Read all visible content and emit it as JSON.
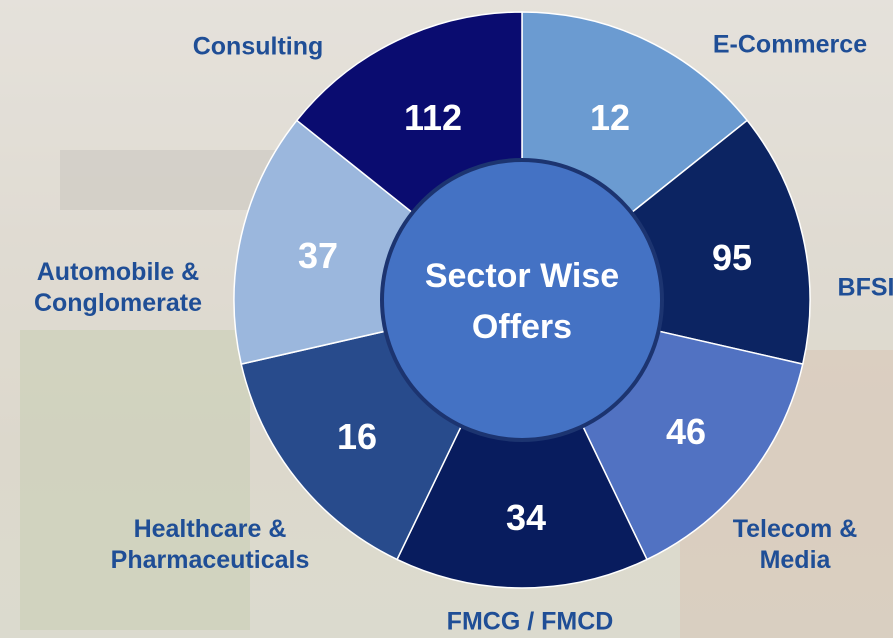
{
  "title": "Sector Wise Offers",
  "segments": [
    {
      "label": "E-Commerce",
      "value": 12,
      "color": "#6b9bd1"
    },
    {
      "label": "BFSI",
      "value": 95,
      "color": "#0c2462"
    },
    {
      "label": "Telecom & Media",
      "value": 46,
      "color": "#5172c2"
    },
    {
      "label": "FMCG / FMCD",
      "value": 34,
      "color": "#081c5e"
    },
    {
      "label": "Healthcare & Pharmaceuticals",
      "value": 16,
      "color": "#284b8c"
    },
    {
      "label": "Automobile & Conglomerate",
      "value": 37,
      "color": "#9bb7dd"
    },
    {
      "label": "Consulting",
      "value": 112,
      "color": "#0a0c70"
    }
  ]
}
